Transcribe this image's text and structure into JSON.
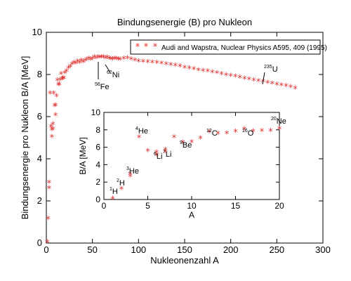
{
  "chart_data": [
    {
      "type": "scatter",
      "title": "Bindungsenergie (B) pro Nukleon",
      "xlabel": "Nukleonenzahl A",
      "ylabel": "Bindungsenergie pro Nukleon B/A [MeV]",
      "xlim": [
        0,
        300
      ],
      "ylim": [
        0,
        10
      ],
      "xticks": [
        0,
        50,
        100,
        150,
        200,
        250,
        300
      ],
      "yticks": [
        0,
        2,
        4,
        6,
        8,
        10
      ],
      "marker": "*",
      "marker_color": "#e0312f",
      "legend": {
        "position": "top-right",
        "entries": [
          "Audi and Wapstra, Nuclear Physics A595, 409 (1995)"
        ]
      },
      "series": [
        {
          "name": "Audi and Wapstra, Nuclear Physics A595, 409 (1995)",
          "x": [
            1,
            2,
            3,
            3,
            4,
            5,
            6,
            6,
            7,
            7,
            8,
            9,
            10,
            10,
            11,
            12,
            13,
            14,
            15,
            16,
            17,
            18,
            19,
            20,
            22,
            24,
            26,
            28,
            30,
            32,
            34,
            36,
            38,
            40,
            42,
            44,
            46,
            48,
            50,
            52,
            54,
            56,
            58,
            60,
            62,
            64,
            66,
            68,
            70,
            72,
            74,
            76,
            78,
            80,
            84,
            88,
            92,
            96,
            100,
            105,
            110,
            115,
            120,
            125,
            130,
            135,
            140,
            145,
            150,
            155,
            160,
            165,
            170,
            175,
            180,
            185,
            190,
            195,
            200,
            205,
            210,
            215,
            220,
            225,
            230,
            235,
            240,
            245,
            250,
            255,
            260,
            265,
            270
          ],
          "y": [
            0.0,
            1.11,
            2.57,
            2.83,
            7.07,
            5.48,
            5.33,
            5.0,
            5.6,
            5.37,
            7.06,
            6.46,
            6.5,
            6.03,
            6.93,
            7.68,
            7.47,
            7.48,
            7.7,
            7.98,
            7.75,
            7.77,
            7.78,
            8.03,
            8.11,
            8.26,
            8.33,
            8.45,
            8.52,
            8.48,
            8.58,
            8.52,
            8.61,
            8.55,
            8.62,
            8.66,
            8.72,
            8.67,
            8.7,
            8.78,
            8.74,
            8.79,
            8.77,
            8.78,
            8.79,
            8.74,
            8.76,
            8.72,
            8.7,
            8.69,
            8.71,
            8.7,
            8.69,
            8.67,
            8.72,
            8.73,
            8.69,
            8.64,
            8.59,
            8.57,
            8.55,
            8.53,
            8.51,
            8.48,
            8.45,
            8.42,
            8.38,
            8.35,
            8.29,
            8.25,
            8.21,
            8.17,
            8.14,
            8.11,
            8.07,
            8.03,
            7.99,
            7.94,
            7.9,
            7.86,
            7.82,
            7.77,
            7.73,
            7.69,
            7.65,
            7.61,
            7.57,
            7.53,
            7.49,
            7.45,
            7.41,
            7.37,
            7.3
          ]
        }
      ],
      "annotations": [
        {
          "sup": "56",
          "text": "Fe"
        },
        {
          "sup": "62",
          "text": "Ni"
        },
        {
          "sup": "235",
          "text": "U"
        }
      ]
    },
    {
      "type": "scatter",
      "xlabel": "A",
      "ylabel": "B/A [MeV]",
      "xlim": [
        0,
        20
      ],
      "ylim": [
        0,
        10
      ],
      "xticks": [
        0,
        5,
        10,
        15,
        20
      ],
      "yticks": [
        0,
        2,
        4,
        6,
        8,
        10
      ],
      "marker": "*",
      "marker_color": "#e0312f",
      "series": [
        {
          "x": [
            1,
            2,
            3,
            3,
            4,
            5,
            6,
            6,
            7,
            7,
            8,
            9,
            10,
            11,
            12,
            13,
            14,
            15,
            16,
            17,
            18,
            19,
            20
          ],
          "y": [
            0.0,
            1.11,
            2.57,
            2.83,
            7.07,
            5.48,
            5.33,
            5.0,
            5.6,
            5.37,
            7.06,
            6.46,
            6.5,
            6.93,
            7.68,
            7.47,
            7.48,
            7.7,
            7.98,
            7.75,
            7.77,
            7.78,
            8.03
          ]
        }
      ],
      "annotations": [
        {
          "sup": "1",
          "text": "H"
        },
        {
          "sup": "2",
          "text": "H"
        },
        {
          "sup": "3",
          "text": "He"
        },
        {
          "sup": "4",
          "text": "He"
        },
        {
          "sup": "6",
          "text": "Li"
        },
        {
          "sup": "7",
          "text": "Li"
        },
        {
          "sup": "9",
          "text": "Be"
        },
        {
          "sup": "12",
          "text": "C"
        },
        {
          "sup": "16",
          "text": "O"
        },
        {
          "sup": "20",
          "text": "Ne"
        }
      ]
    }
  ]
}
